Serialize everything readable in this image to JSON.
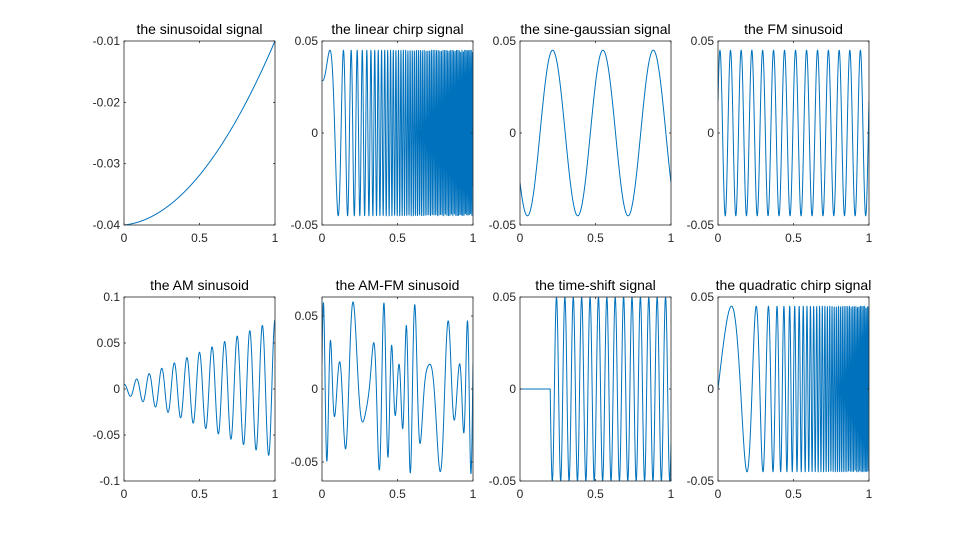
{
  "chart_data": [
    {
      "type": "line",
      "title": "the sinusoidal signal",
      "fn": "sinusoidal",
      "xlim": [
        0,
        1
      ],
      "ylim": [
        -0.04,
        -0.01
      ],
      "xticks": [
        "0",
        "0.5",
        "1"
      ],
      "xtick_values": [
        0,
        0.5,
        1
      ],
      "yticks": [
        "-0.04",
        "-0.03",
        "-0.02",
        "-0.01"
      ],
      "ytick_values": [
        -0.04,
        -0.03,
        -0.02,
        -0.01
      ],
      "color": "#0072bd"
    },
    {
      "type": "line",
      "title": "the linear chirp signal",
      "fn": "linear_chirp",
      "xlim": [
        0,
        1
      ],
      "ylim": [
        -0.05,
        0.05
      ],
      "xticks": [
        "0",
        "0.5",
        "1"
      ],
      "xtick_values": [
        0,
        0.5,
        1
      ],
      "yticks": [
        "-0.05",
        "0",
        "0.05"
      ],
      "ytick_values": [
        -0.05,
        0,
        0.05
      ],
      "color": "#0072bd"
    },
    {
      "type": "line",
      "title": "the sine-gaussian signal",
      "fn": "sine_gaussian",
      "xlim": [
        0,
        1
      ],
      "ylim": [
        -0.05,
        0.05
      ],
      "xticks": [
        "0",
        "0.5",
        "1"
      ],
      "xtick_values": [
        0,
        0.5,
        1
      ],
      "yticks": [
        "-0.05",
        "0",
        "0.05"
      ],
      "ytick_values": [
        -0.05,
        0,
        0.05
      ],
      "color": "#0072bd"
    },
    {
      "type": "line",
      "title": "the FM sinusoid",
      "fn": "fm",
      "xlim": [
        0,
        1
      ],
      "ylim": [
        -0.05,
        0.05
      ],
      "xticks": [
        "0",
        "0.5",
        "1"
      ],
      "xtick_values": [
        0,
        0.5,
        1
      ],
      "yticks": [
        "-0.05",
        "0",
        "0.05"
      ],
      "ytick_values": [
        -0.05,
        0,
        0.05
      ],
      "color": "#0072bd"
    },
    {
      "type": "line",
      "title": "the AM sinusoid",
      "fn": "am",
      "xlim": [
        0,
        1
      ],
      "ylim": [
        -0.1,
        0.1
      ],
      "xticks": [
        "0",
        "0.5",
        "1"
      ],
      "xtick_values": [
        0,
        0.5,
        1
      ],
      "yticks": [
        "-0.1",
        "-0.05",
        "0",
        "0.05",
        "0.1"
      ],
      "ytick_values": [
        -0.1,
        -0.05,
        0,
        0.05,
        0.1
      ],
      "color": "#0072bd"
    },
    {
      "type": "line",
      "title": "the AM-FM sinusoid",
      "fn": "amfm",
      "xlim": [
        0,
        1
      ],
      "ylim": [
        -0.063,
        0.063
      ],
      "xticks": [
        "0",
        "0.5",
        "1"
      ],
      "xtick_values": [
        0,
        0.5,
        1
      ],
      "yticks": [
        "-0.05",
        "0",
        "0.05"
      ],
      "ytick_values": [
        -0.05,
        0,
        0.05
      ],
      "color": "#0072bd"
    },
    {
      "type": "line",
      "title": "the time-shift signal",
      "fn": "time_shift",
      "xlim": [
        0,
        1
      ],
      "ylim": [
        -0.05,
        0.05
      ],
      "xticks": [
        "0",
        "0.5",
        "1"
      ],
      "xtick_values": [
        0,
        0.5,
        1
      ],
      "yticks": [
        "-0.05",
        "0",
        "0.05"
      ],
      "ytick_values": [
        -0.05,
        0,
        0.05
      ],
      "color": "#0072bd"
    },
    {
      "type": "line",
      "title": "the quadratic chirp signal",
      "fn": "quadratic_chirp",
      "xlim": [
        0,
        1
      ],
      "ylim": [
        -0.05,
        0.05
      ],
      "xticks": [
        "0",
        "0.5",
        "1"
      ],
      "xtick_values": [
        0,
        0.5,
        1
      ],
      "yticks": [
        "-0.05",
        "0",
        "0.05"
      ],
      "ytick_values": [
        -0.05,
        0,
        0.05
      ],
      "color": "#0072bd"
    }
  ]
}
